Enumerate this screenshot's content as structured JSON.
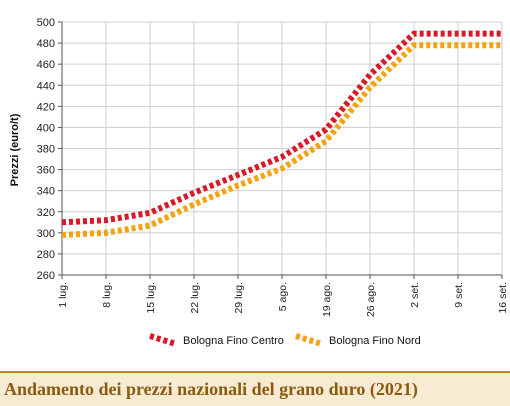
{
  "caption": "Andamento dei prezzi nazionali del grano duro (2021)",
  "chart_data": {
    "type": "line",
    "title": "",
    "ylabel": "Prezzi (euro/t)",
    "xlabel": "",
    "ylim": [
      260,
      500
    ],
    "yticks": [
      260,
      280,
      300,
      320,
      340,
      360,
      380,
      400,
      420,
      440,
      460,
      480,
      500
    ],
    "categories": [
      "1 lug.",
      "8 lug.",
      "15 lug.",
      "22 lug.",
      "29 lug.",
      "5 ago.",
      "19 ago.",
      "26 ago.",
      "2 set.",
      "9 set.",
      "16 set."
    ],
    "grid": true,
    "legend_position": "bottom",
    "series": [
      {
        "name": "Bologna Fino Centro",
        "color": "#d7192a",
        "values": [
          310,
          312,
          319,
          338,
          355,
          372,
          398,
          450,
          489,
          489,
          489
        ]
      },
      {
        "name": "Bologna Fino Nord",
        "color": "#f2a30f",
        "values": [
          298,
          300,
          307,
          327,
          345,
          361,
          387,
          438,
          478,
          478,
          478
        ]
      }
    ]
  }
}
